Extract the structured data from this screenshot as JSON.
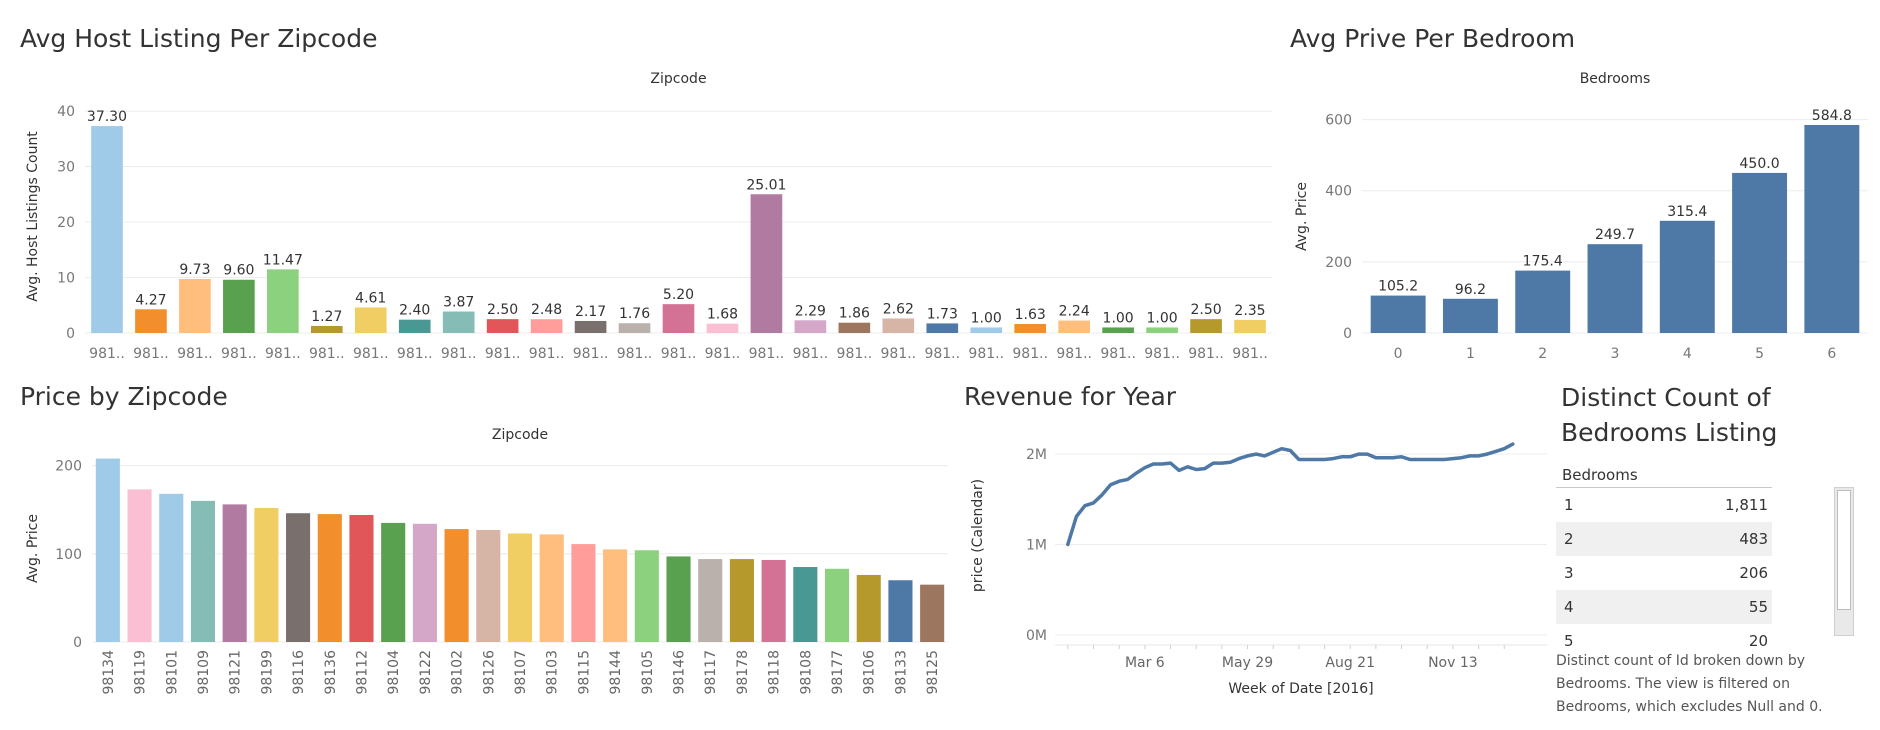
{
  "panels": {
    "host_listing": {
      "title": "Avg Host Listing Per Zipcode"
    },
    "bedroom_price": {
      "title": "Avg Prive Per Bedroom"
    },
    "price_zip": {
      "title": "Price by Zipcode"
    },
    "revenue": {
      "title": "Revenue for Year"
    },
    "bedroom_count": {
      "title": "Distinct Count of Bedrooms Listing"
    }
  },
  "chart_data": [
    {
      "id": "host_listing",
      "type": "bar",
      "title": "Avg Host Listing Per Zipcode",
      "header": "Zipcode",
      "ylabel": "Avg. Host Listings Count",
      "ylim": [
        0,
        42
      ],
      "yticks": [
        0,
        10,
        20,
        30,
        40
      ],
      "grid": true,
      "categories": [
        "981..",
        "981..",
        "981..",
        "981..",
        "981..",
        "981..",
        "981..",
        "981..",
        "981..",
        "981..",
        "981..",
        "981..",
        "981..",
        "981..",
        "981..",
        "981..",
        "981..",
        "981..",
        "981..",
        "981..",
        "981..",
        "981..",
        "981..",
        "981..",
        "981..",
        "981..",
        "981.."
      ],
      "values": [
        37.3,
        4.27,
        9.73,
        9.6,
        11.47,
        1.27,
        4.61,
        2.4,
        3.87,
        2.5,
        2.48,
        2.17,
        1.76,
        5.2,
        1.68,
        25.01,
        2.29,
        1.86,
        2.62,
        1.73,
        1.0,
        1.63,
        2.24,
        1.0,
        1.0,
        2.5,
        2.35
      ],
      "labels": [
        "37.30",
        "4.27",
        "9.73",
        "9.60",
        "11.47",
        "1.27",
        "4.61",
        "2.40",
        "3.87",
        "2.50",
        "2.48",
        "2.17",
        "1.76",
        "5.20",
        "1.68",
        "25.01",
        "2.29",
        "1.86",
        "2.62",
        "1.73",
        "1.00",
        "1.63",
        "2.24",
        "1.00",
        "1.00",
        "2.50",
        "2.35"
      ],
      "colors": [
        "#a0cbe8",
        "#f28e2b",
        "#ffbe7d",
        "#59a14f",
        "#8cd17d",
        "#b6992d",
        "#f1ce63",
        "#499894",
        "#86bcb6",
        "#e15759",
        "#ff9d9a",
        "#79706e",
        "#bab0ac",
        "#d37295",
        "#fabfd2",
        "#b07aa1",
        "#d4a6c8",
        "#9d7660",
        "#d7b5a6",
        "#4e79a7",
        "#a0cbe8",
        "#f28e2b",
        "#ffbe7d",
        "#59a14f",
        "#8cd17d",
        "#b6992d",
        "#f1ce63"
      ]
    },
    {
      "id": "bedroom_price",
      "type": "bar",
      "title": "Avg Prive Per Bedroom",
      "header": "Bedrooms",
      "ylabel": "Avg. Price",
      "ylim": [
        0,
        655
      ],
      "yticks": [
        0,
        200,
        400,
        600
      ],
      "grid": true,
      "categories": [
        "0",
        "1",
        "2",
        "3",
        "4",
        "5",
        "6"
      ],
      "values": [
        105.2,
        96.2,
        175.4,
        249.7,
        315.4,
        450.0,
        584.8
      ],
      "labels": [
        "105.2",
        "96.2",
        "175.4",
        "249.7",
        "315.4",
        "450.0",
        "584.8"
      ],
      "colors": [
        "#4e79a7"
      ]
    },
    {
      "id": "price_zip",
      "type": "bar",
      "title": "Price by Zipcode",
      "header": "Zipcode",
      "ylabel": "Avg. Price",
      "ylim": [
        0,
        212
      ],
      "yticks": [
        0,
        100,
        200
      ],
      "grid": true,
      "categories": [
        "98134",
        "98119",
        "98101",
        "98109",
        "98121",
        "98199",
        "98116",
        "98136",
        "98112",
        "98104",
        "98122",
        "98102",
        "98126",
        "98107",
        "98103",
        "98115",
        "98144",
        "98105",
        "98146",
        "98117",
        "98178",
        "98118",
        "98108",
        "98177",
        "98106",
        "98133",
        "98125"
      ],
      "values": [
        208,
        173,
        168,
        160,
        156,
        152,
        146,
        145,
        144,
        135,
        134,
        128,
        127,
        123,
        122,
        111,
        105,
        104,
        97,
        94,
        94,
        93,
        85,
        83,
        76,
        70,
        65
      ],
      "colors": [
        "#a0cbe8",
        "#fabfd2",
        "#a0cbe8",
        "#86bcb6",
        "#b07aa1",
        "#f1ce63",
        "#79706e",
        "#f28e2b",
        "#e15759",
        "#59a14f",
        "#d4a6c8",
        "#f28e2b",
        "#d7b5a6",
        "#f1ce63",
        "#ffbe7d",
        "#ff9d9a",
        "#ffbe7d",
        "#8cd17d",
        "#59a14f",
        "#bab0ac",
        "#b6992d",
        "#d37295",
        "#499894",
        "#8cd17d",
        "#b6992d",
        "#4e79a7",
        "#9d7660"
      ]
    },
    {
      "id": "revenue",
      "type": "line",
      "title": "Revenue for Year",
      "xlabel": "Week of Date [2016]",
      "ylabel": "price (Calendar)",
      "ylim": [
        0,
        2200000
      ],
      "yticks": [
        0,
        1000000,
        2000000
      ],
      "ytick_labels": [
        "0M",
        "1M",
        "2M"
      ],
      "xticks": [
        9,
        21,
        33,
        45
      ],
      "xtick_labels": [
        "Mar 6",
        "May 29",
        "Aug 21",
        "Nov 13"
      ],
      "xlim": [
        -1.5,
        56
      ],
      "grid": true,
      "line_color": "#4e79a7",
      "x": [
        0,
        1,
        2,
        3,
        4,
        5,
        6,
        7,
        8,
        9,
        10,
        11,
        12,
        13,
        14,
        15,
        16,
        17,
        18,
        19,
        20,
        21,
        22,
        23,
        24,
        25,
        26,
        27,
        28,
        29,
        30,
        31,
        32,
        33,
        34,
        35,
        36,
        37,
        38,
        39,
        40,
        41,
        42,
        43,
        44,
        45,
        46,
        47,
        48,
        49,
        50,
        51,
        52
      ],
      "values": [
        1000000,
        1310000,
        1430000,
        1460000,
        1550000,
        1660000,
        1700000,
        1720000,
        1790000,
        1850000,
        1890000,
        1890000,
        1900000,
        1820000,
        1860000,
        1830000,
        1840000,
        1900000,
        1900000,
        1910000,
        1950000,
        1980000,
        2000000,
        1980000,
        2020000,
        2060000,
        2040000,
        1940000,
        1940000,
        1940000,
        1940000,
        1950000,
        1970000,
        1970000,
        2000000,
        2000000,
        1960000,
        1960000,
        1960000,
        1970000,
        1940000,
        1940000,
        1940000,
        1940000,
        1940000,
        1950000,
        1960000,
        1980000,
        1980000,
        2000000,
        2030000,
        2060000,
        2110000
      ]
    },
    {
      "id": "bedroom_count",
      "type": "table",
      "title": "Distinct Count of Bedrooms Listing",
      "header": "Bedrooms",
      "rows": [
        {
          "bedrooms": "1",
          "count": "1,811"
        },
        {
          "bedrooms": "2",
          "count": "483"
        },
        {
          "bedrooms": "3",
          "count": "206"
        },
        {
          "bedrooms": "4",
          "count": "55"
        },
        {
          "bedrooms": "5",
          "count": "20"
        }
      ],
      "caption": "Distinct count of Id broken down by Bedrooms. The view is filtered on Bedrooms, which excludes Null and 0."
    }
  ]
}
